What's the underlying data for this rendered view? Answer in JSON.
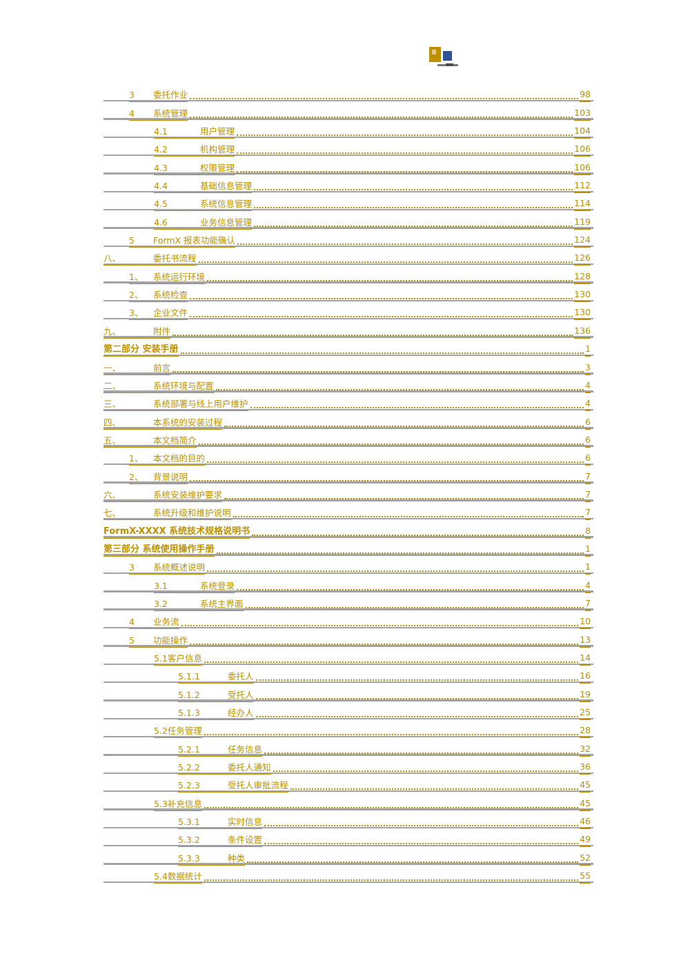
{
  "page": {
    "background": "#ffffff",
    "kind": "document-table-of-contents",
    "language": "zh-CN"
  },
  "colors": {
    "link_gold": "#BE8F00",
    "ghost_underline_gray": "#9E9E9E",
    "logo_blue": "#2F5496",
    "logo_dark": "#3A3A3A"
  },
  "header": {
    "logo": {
      "name": "company-logo",
      "parts": [
        "gold-mark",
        "blue-mark",
        "dark-caption-bar"
      ]
    }
  },
  "toc": {
    "rows": [
      {
        "level": 1,
        "marker": "3",
        "tab": true,
        "joined": false,
        "header": false,
        "title": "委托作业",
        "page": "98"
      },
      {
        "level": 1,
        "marker": "4",
        "tab": true,
        "joined": false,
        "header": false,
        "title": "系统管理",
        "page": "103"
      },
      {
        "level": 2,
        "marker": "4.1",
        "tab": true,
        "joined": false,
        "header": false,
        "title": "用户管理",
        "page": "104"
      },
      {
        "level": 2,
        "marker": "4.2",
        "tab": true,
        "joined": false,
        "header": false,
        "title": "机构管理",
        "page": "106"
      },
      {
        "level": 2,
        "marker": "4.3",
        "tab": true,
        "joined": false,
        "header": false,
        "title": "权限管理",
        "page": "106"
      },
      {
        "level": 2,
        "marker": "4.4",
        "tab": true,
        "joined": false,
        "header": false,
        "title": "基础信息管理",
        "page": "112"
      },
      {
        "level": 2,
        "marker": "4.5",
        "tab": true,
        "joined": false,
        "header": false,
        "title": "系统信息管理",
        "page": "114"
      },
      {
        "level": 2,
        "marker": "4.6",
        "tab": true,
        "joined": false,
        "header": false,
        "title": "业务信息管理",
        "page": "119"
      },
      {
        "level": 1,
        "marker": "5",
        "tab": true,
        "joined": false,
        "header": false,
        "title": "FormX 报表功能确认",
        "page": "124"
      },
      {
        "level": 0,
        "marker": "八、",
        "tab": true,
        "joined": false,
        "header": false,
        "title": "委托书流程",
        "page": "126"
      },
      {
        "level": 1,
        "marker": "1、",
        "tab": true,
        "joined": false,
        "header": false,
        "title": "系统运行环境",
        "page": "128"
      },
      {
        "level": 1,
        "marker": "2、",
        "tab": true,
        "joined": false,
        "header": false,
        "title": "系统检查",
        "page": "130"
      },
      {
        "level": 1,
        "marker": "3、",
        "tab": true,
        "joined": false,
        "header": false,
        "title": "企业文件",
        "page": "130"
      },
      {
        "level": 0,
        "marker": "九、",
        "tab": true,
        "joined": false,
        "header": false,
        "title": "附件",
        "page": "136"
      },
      {
        "level": 0,
        "marker": "",
        "tab": false,
        "joined": false,
        "header": true,
        "title": "第二部分 安装手册",
        "page": "1"
      },
      {
        "level": 0,
        "marker": "一、",
        "tab": true,
        "joined": false,
        "header": false,
        "title": "前言",
        "page": "3"
      },
      {
        "level": 0,
        "marker": "二、",
        "tab": true,
        "joined": false,
        "header": false,
        "title": "系统环境与配置",
        "page": "4"
      },
      {
        "level": 0,
        "marker": "三、",
        "tab": true,
        "joined": false,
        "header": false,
        "title": "系统部署与线上用户维护",
        "page": "4"
      },
      {
        "level": 0,
        "marker": "四、",
        "tab": true,
        "joined": false,
        "header": false,
        "title": "本系统的安装过程",
        "page": "6"
      },
      {
        "level": 0,
        "marker": "五、",
        "tab": true,
        "joined": false,
        "header": false,
        "title": "本文档简介",
        "page": "6"
      },
      {
        "level": 1,
        "marker": "1、",
        "tab": true,
        "joined": false,
        "header": false,
        "title": "本文档的目的",
        "page": "6"
      },
      {
        "level": 1,
        "marker": "2、",
        "tab": true,
        "joined": false,
        "header": false,
        "title": "背景说明",
        "page": "7"
      },
      {
        "level": 0,
        "marker": "六、",
        "tab": true,
        "joined": false,
        "header": false,
        "title": "系统安装维护要求",
        "page": "7"
      },
      {
        "level": 0,
        "marker": "七、",
        "tab": true,
        "joined": false,
        "header": false,
        "title": "系统升级和维护说明",
        "page": "7"
      },
      {
        "level": 0,
        "marker": "",
        "tab": false,
        "joined": false,
        "header": true,
        "title": "FormX-XXXX 系统技术规格说明书",
        "page": "8"
      },
      {
        "level": 0,
        "marker": "",
        "tab": false,
        "joined": false,
        "header": true,
        "title": "第三部分 系统使用操作手册",
        "page": "1"
      },
      {
        "level": 1,
        "marker": "3",
        "tab": true,
        "joined": false,
        "header": false,
        "title": "系统概述说明",
        "page": "1"
      },
      {
        "level": 2,
        "marker": "3.1",
        "tab": true,
        "joined": false,
        "header": false,
        "title": "系统登录",
        "page": "4"
      },
      {
        "level": 2,
        "marker": "3.2",
        "tab": true,
        "joined": false,
        "header": false,
        "title": "系统主界面",
        "page": "7"
      },
      {
        "level": 1,
        "marker": "4",
        "tab": true,
        "joined": false,
        "header": false,
        "title": "业务流",
        "page": "10"
      },
      {
        "level": 1,
        "marker": "5",
        "tab": true,
        "joined": false,
        "header": false,
        "title": "功能操作",
        "page": "13"
      },
      {
        "level": 2,
        "marker": "5.1",
        "tab": false,
        "joined": true,
        "header": false,
        "title": "客户信息",
        "page": "14"
      },
      {
        "level": 3,
        "marker": "5.1.1",
        "tab": true,
        "joined": false,
        "header": false,
        "title": "委托人",
        "page": "16"
      },
      {
        "level": 3,
        "marker": "5.1.2",
        "tab": true,
        "joined": false,
        "header": false,
        "title": "受托人",
        "page": "19"
      },
      {
        "level": 3,
        "marker": "5.1.3",
        "tab": true,
        "joined": false,
        "header": false,
        "title": "经办人",
        "page": "25"
      },
      {
        "level": 2,
        "marker": "5.2",
        "tab": false,
        "joined": true,
        "header": false,
        "title": "任务管理",
        "page": "28"
      },
      {
        "level": 3,
        "marker": "5.2.1",
        "tab": true,
        "joined": false,
        "header": false,
        "title": "任务信息",
        "page": "32"
      },
      {
        "level": 3,
        "marker": "5.2.2",
        "tab": true,
        "joined": false,
        "header": false,
        "title": "委托人通知",
        "page": "36"
      },
      {
        "level": 3,
        "marker": "5.2.3",
        "tab": true,
        "joined": false,
        "header": false,
        "title": "受托人审批流程",
        "page": "45"
      },
      {
        "level": 2,
        "marker": "5.3",
        "tab": false,
        "joined": true,
        "header": false,
        "title": "补充信息",
        "page": "45"
      },
      {
        "level": 3,
        "marker": "5.3.1",
        "tab": true,
        "joined": false,
        "header": false,
        "title": "实时信息",
        "page": "46"
      },
      {
        "level": 3,
        "marker": "5.3.2",
        "tab": true,
        "joined": false,
        "header": false,
        "title": "条件设置",
        "page": "49"
      },
      {
        "level": 3,
        "marker": "5.3.3",
        "tab": true,
        "joined": false,
        "header": false,
        "title": "种类",
        "page": "52"
      },
      {
        "level": 2,
        "marker": "5.4",
        "tab": false,
        "joined": true,
        "header": false,
        "title": "数据统计",
        "page": "55"
      }
    ]
  }
}
